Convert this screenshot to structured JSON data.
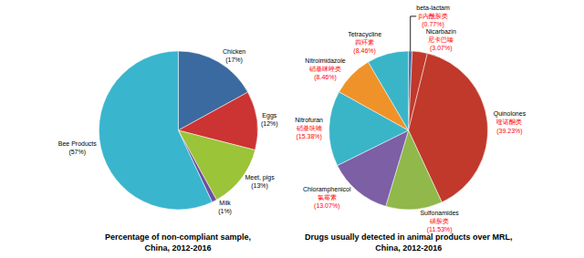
{
  "chart_data": [
    {
      "type": "pie",
      "title": "Percentage of non-compliant sample,\nChina, 2012-2016",
      "categories": [
        "Chicken\n(17%)",
        "Eggs\n(12%)",
        "Meet, pigs\n(13%)",
        "Milk\n(1%)",
        "Bee Products\n(57%)"
      ],
      "values": [
        17,
        12,
        13,
        1,
        57
      ],
      "colors": [
        "#3b6aa0",
        "#cc3333",
        "#9bc438",
        "#6b4fa0",
        "#3ab5ce"
      ]
    },
    {
      "type": "pie",
      "title": "Drugs usually detected in animal products over MRL,\nChina, 2012-2016",
      "categories": [
        "beta-lactam\nβ内酰胺类\n(0.77%)",
        "Nicarbazin\n尼卡巴嗪\n(3.07%)",
        "Quinolones\n喹诺酮类\n(39.23%)",
        "Sulfonamides\n磺胺类\n(11.53%)",
        "Chloramphenicol\n氯霉素\n(13.07%)",
        "Nitrofuran\n硝基呋喃\n(15.38%)",
        "Nitroimidazole\n硝基咪唑类\n(8.46%)",
        "Tetracycline\n四环素\n(8.46%)"
      ],
      "values": [
        0.77,
        3.07,
        39.23,
        11.53,
        13.07,
        15.38,
        8.46,
        8.46
      ],
      "colors": [
        "#4472a8",
        "#c0392b",
        "#c0392b",
        "#90b84a",
        "#7c5fa5",
        "#3ab5c8",
        "#f0922a",
        "#3ab5c8"
      ]
    }
  ]
}
